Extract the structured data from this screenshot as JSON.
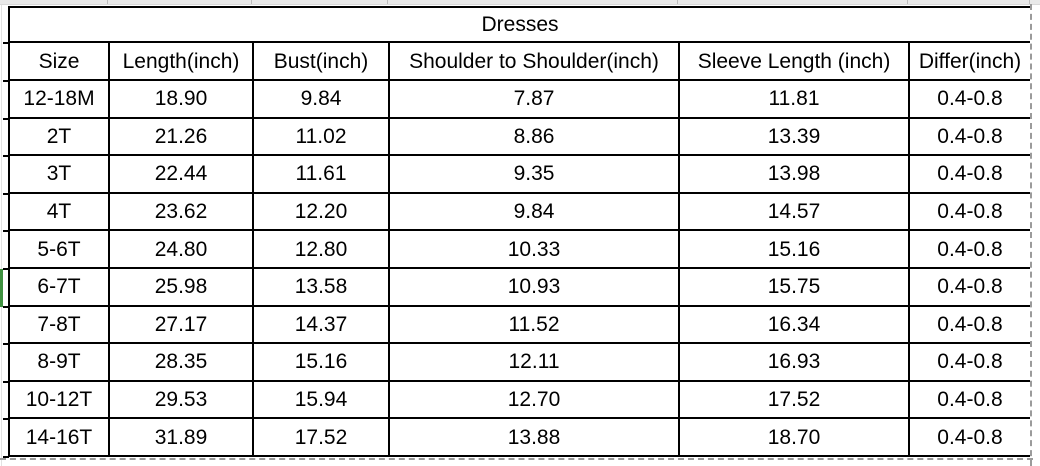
{
  "table": {
    "title": "Dresses",
    "columns": [
      "Size",
      "Length(inch)",
      "Bust(inch)",
      "Shoulder to Shoulder(inch)",
      "Sleeve Length (inch)",
      "Differ(inch)"
    ],
    "rows": [
      [
        "12-18M",
        "18.90",
        "9.84",
        "7.87",
        "11.81",
        "0.4-0.8"
      ],
      [
        "2T",
        "21.26",
        "11.02",
        "8.86",
        "13.39",
        "0.4-0.8"
      ],
      [
        "3T",
        "22.44",
        "11.61",
        "9.35",
        "13.98",
        "0.4-0.8"
      ],
      [
        "4T",
        "23.62",
        "12.20",
        "9.84",
        "14.57",
        "0.4-0.8"
      ],
      [
        "5-6T",
        "24.80",
        "12.80",
        "10.33",
        "15.16",
        "0.4-0.8"
      ],
      [
        "6-7T",
        "25.98",
        "13.58",
        "10.93",
        "15.75",
        "0.4-0.8"
      ],
      [
        "7-8T",
        "27.17",
        "14.37",
        "11.52",
        "16.34",
        "0.4-0.8"
      ],
      [
        "8-9T",
        "28.35",
        "15.16",
        "12.11",
        "16.93",
        "0.4-0.8"
      ],
      [
        "10-12T",
        "29.53",
        "15.94",
        "12.70",
        "17.52",
        "0.4-0.8"
      ],
      [
        "14-16T",
        "31.89",
        "17.52",
        "13.88",
        "18.70",
        "0.4-0.8"
      ]
    ],
    "selected_row": "6-7T",
    "colors": {
      "selection_green": "#3f9140",
      "grid_black": "#000000",
      "pagebreak_gray": "#9b9b9b",
      "band_gray": "#e9e9e9"
    }
  }
}
